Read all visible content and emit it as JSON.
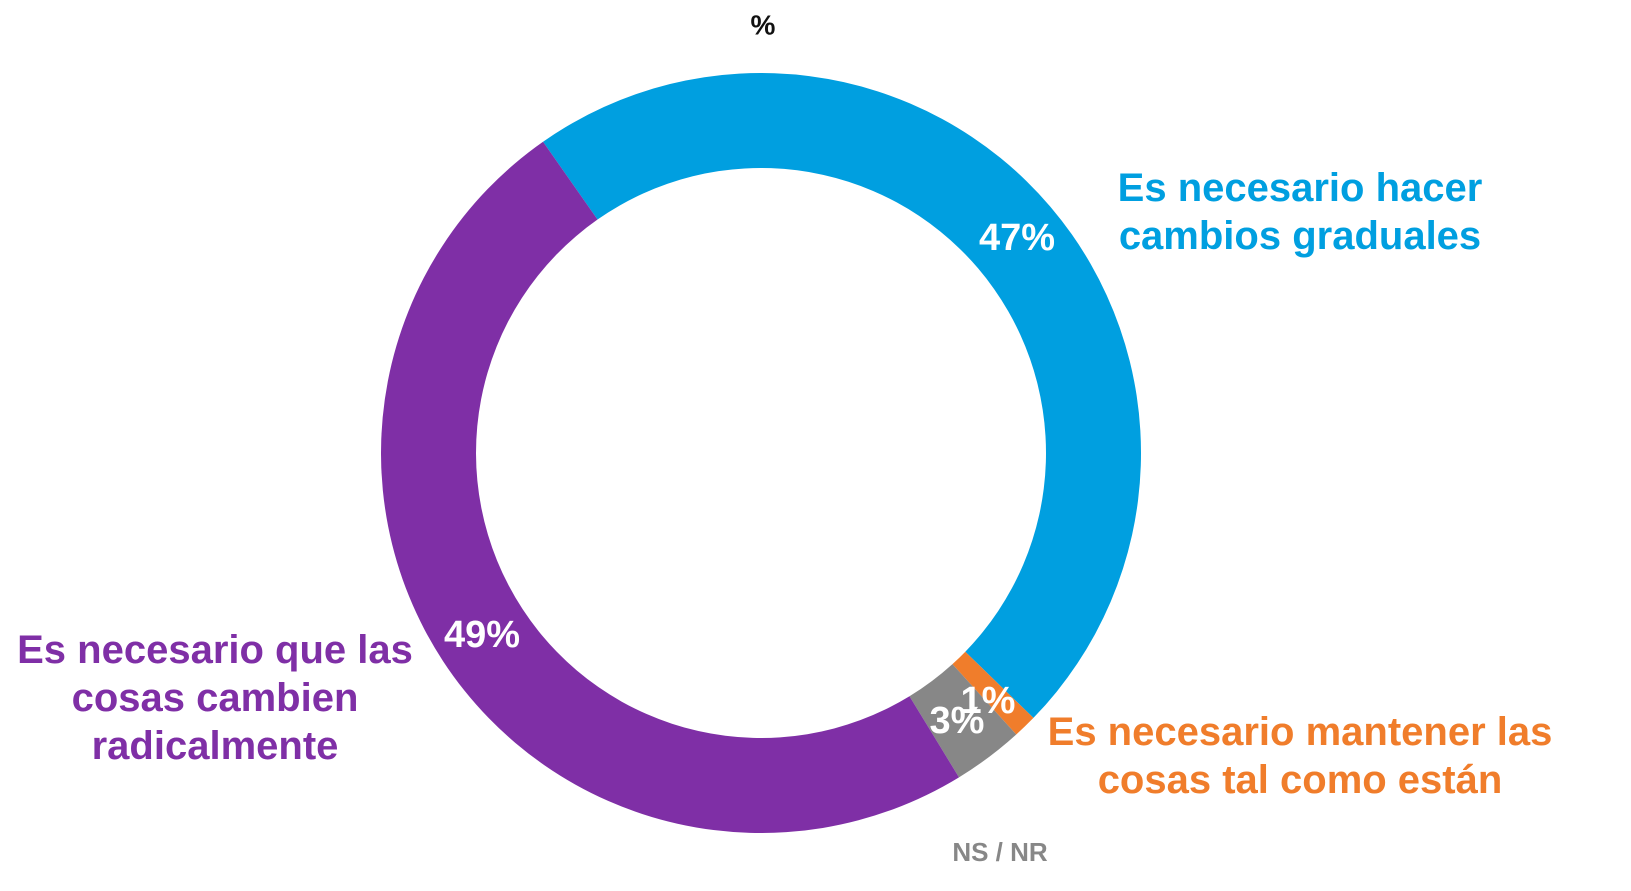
{
  "chart_data": {
    "type": "donut",
    "title": "%",
    "categories": [
      "Es necesario hacer cambios graduales",
      "Es necesario mantener las cosas tal como están",
      "NS / NR",
      "Es necesario que las cosas cambien radicalmente"
    ],
    "values": [
      47,
      1,
      3,
      49
    ],
    "value_labels": [
      "47%",
      "1%",
      "3%",
      "49%"
    ],
    "colors": [
      "#009fe0",
      "#f07d2b",
      "#878787",
      "#7f2fa6"
    ]
  }
}
